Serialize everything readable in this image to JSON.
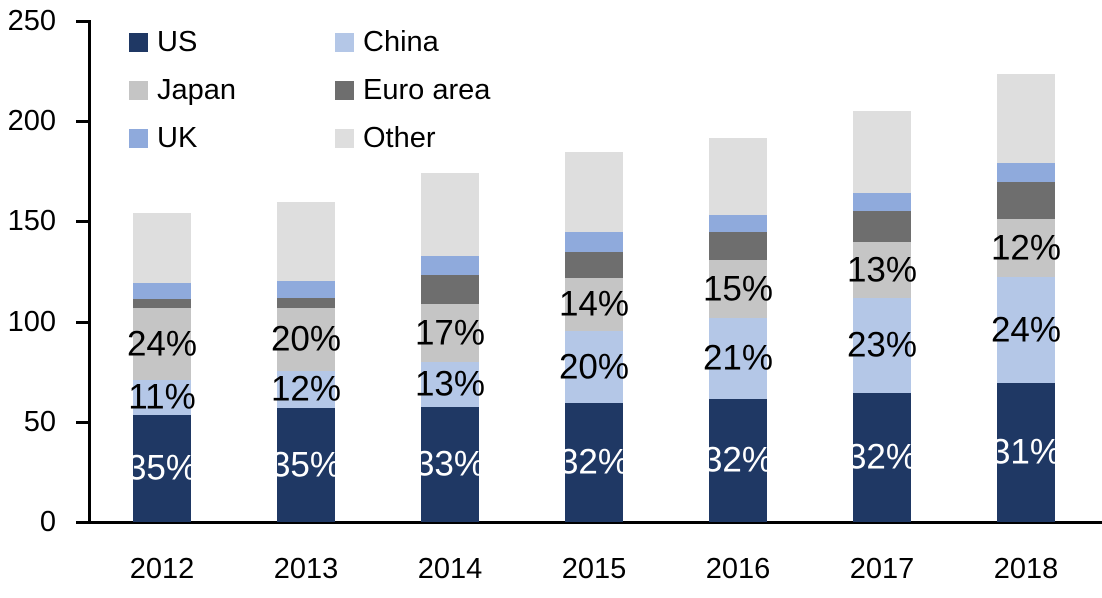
{
  "chart_data": {
    "type": "bar",
    "subtype": "stacked",
    "title": "",
    "xlabel": "",
    "ylabel": "",
    "categories": [
      "2012",
      "2013",
      "2014",
      "2015",
      "2016",
      "2017",
      "2018"
    ],
    "series": [
      {
        "name": "US",
        "color": "#1f3864",
        "values": [
          53.5,
          57.0,
          57.5,
          59.5,
          61.5,
          64.5,
          69.5
        ],
        "labels": [
          "35%",
          "35%",
          "33%",
          "32%",
          "32%",
          "32%",
          "31%"
        ],
        "label_color": "#ffffff"
      },
      {
        "name": "China",
        "color": "#b4c7e7",
        "values": [
          17.5,
          18.5,
          22.5,
          36.0,
          40.5,
          47.5,
          53.0
        ],
        "labels": [
          "11%",
          "12%",
          "13%",
          "20%",
          "21%",
          "23%",
          "24%"
        ],
        "label_color": "#000000"
      },
      {
        "name": "Japan",
        "color": "#c5c5c5",
        "values": [
          36.0,
          31.5,
          29.0,
          26.5,
          28.5,
          27.5,
          28.5
        ],
        "labels": [
          "24%",
          "20%",
          "17%",
          "14%",
          "15%",
          "13%",
          "12%"
        ],
        "label_color": "#000000"
      },
      {
        "name": "Euro area",
        "color": "#6e6e6e",
        "values": [
          4.5,
          5.0,
          14.5,
          12.5,
          14.0,
          15.5,
          18.5
        ],
        "labels": null,
        "label_color": null
      },
      {
        "name": "UK",
        "color": "#8faadc",
        "values": [
          8.0,
          8.5,
          9.0,
          10.0,
          8.5,
          9.0,
          9.5
        ],
        "labels": null,
        "label_color": null
      },
      {
        "name": "Other",
        "color": "#dedede",
        "values": [
          34.5,
          39.0,
          41.5,
          40.0,
          38.5,
          41.0,
          44.5
        ],
        "labels": null,
        "label_color": null
      }
    ],
    "totals": [
      154,
      159.5,
      174,
      184.5,
      191.5,
      205,
      223.5
    ],
    "ylim": [
      0,
      250
    ],
    "yticks": [
      0,
      50,
      100,
      150,
      200,
      250
    ],
    "grid": false,
    "legend_position": "top-left",
    "legend_columns": 2,
    "axis_color": "#000000",
    "background_color": "#ffffff"
  }
}
